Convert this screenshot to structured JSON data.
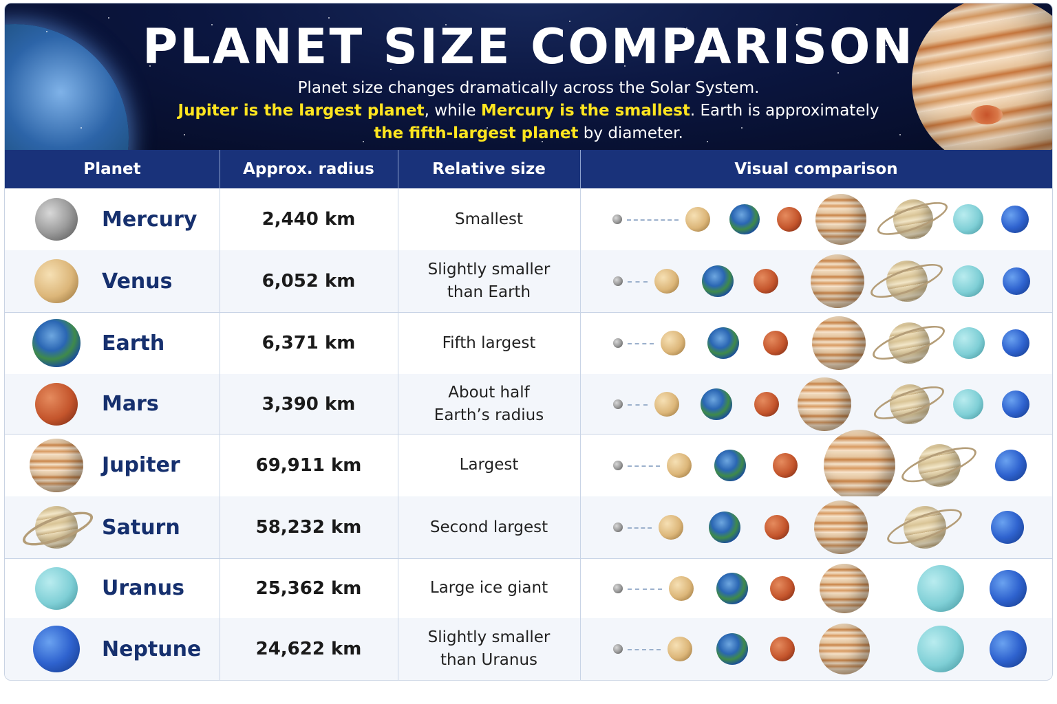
{
  "banner": {
    "title": "PLANET SIZE COMPARISON",
    "line1": "Planet size changes dramatically across the Solar System.",
    "line2_hl1": "Jupiter is the largest planet",
    "line2_sep": ",  while ",
    "line2_hl2": "Mercury is the smallest",
    "line2_rest": ". Earth is approximately",
    "line3_hl": "the fifth-largest planet",
    "line3_rest": " by diameter."
  },
  "table": {
    "columns": [
      "Planet",
      "Approx. radius",
      "Relative size",
      "Visual comparison"
    ],
    "rows": [
      {
        "planet": "Mercury",
        "icon": "mercury-icon",
        "radius": "2,440 km",
        "relative": [
          "Smallest"
        ]
      },
      {
        "planet": "Venus",
        "icon": "venus-icon",
        "radius": "6,052 km",
        "relative": [
          "Slightly smaller",
          "than Earth"
        ]
      },
      {
        "planet": "Earth",
        "icon": "earth-icon",
        "radius": "6,371 km",
        "relative": [
          "Fifth largest"
        ]
      },
      {
        "planet": "Mars",
        "icon": "mars-icon",
        "radius": "3,390 km",
        "relative": [
          "About half",
          "Earth’s radius"
        ]
      },
      {
        "planet": "Jupiter",
        "icon": "jupiter-icon",
        "radius": "69,911 km",
        "relative": [
          "Largest"
        ]
      },
      {
        "planet": "Saturn",
        "icon": "saturn-icon",
        "radius": "58,232 km",
        "relative": [
          "Second largest"
        ]
      },
      {
        "planet": "Uranus",
        "icon": "uranus-icon",
        "radius": "25,362 km",
        "relative": [
          "Large ice giant"
        ]
      },
      {
        "planet": "Neptune",
        "icon": "neptune-icon",
        "radius": "24,622 km",
        "relative": [
          "Slightly smaller",
          "than Uranus"
        ]
      }
    ]
  },
  "colors": {
    "banner_bg": "#0b1640",
    "header_bg": "#19327a",
    "highlight": "#ffe51f",
    "planet_name": "#16306e"
  },
  "visual_sequence": [
    "mercury-icon",
    "venus-icon",
    "earth-icon",
    "mars-icon",
    "jupiter-icon",
    "saturn-icon",
    "uranus-icon",
    "neptune-icon"
  ]
}
